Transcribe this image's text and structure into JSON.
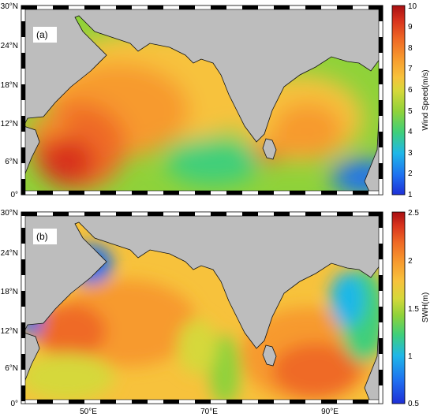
{
  "panels": [
    {
      "id": "a",
      "label": "(a)",
      "colorbar_title": "Wind Speed(m/s)",
      "colorbar_ticks": [
        "10",
        "9",
        "8",
        "7",
        "6",
        "5",
        "4",
        "3",
        "2",
        "1"
      ],
      "lat_ticks": [
        "30°N",
        "24°N",
        "18°N",
        "12°N",
        "6°N",
        "0°"
      ],
      "lon_ticks": []
    },
    {
      "id": "b",
      "label": "(b)",
      "colorbar_title": "SWH(m)",
      "colorbar_ticks": [
        "2.5",
        "2",
        "1.5",
        "1",
        "0.5"
      ],
      "lat_ticks": [
        "30°N",
        "24°N",
        "18°N",
        "12°N",
        "6°N",
        "0°"
      ],
      "lon_ticks": [
        "50°E",
        "70°E",
        "90°E"
      ]
    }
  ],
  "colors": {
    "land": "#bdbdbd",
    "colormap": [
      "#1e2fd6",
      "#1f6ff0",
      "#1fb7e8",
      "#3fcf7a",
      "#8fd23a",
      "#d6d83a",
      "#f7c23c",
      "#f79a2e",
      "#ef6a25",
      "#d8331d",
      "#a80f12"
    ]
  }
}
